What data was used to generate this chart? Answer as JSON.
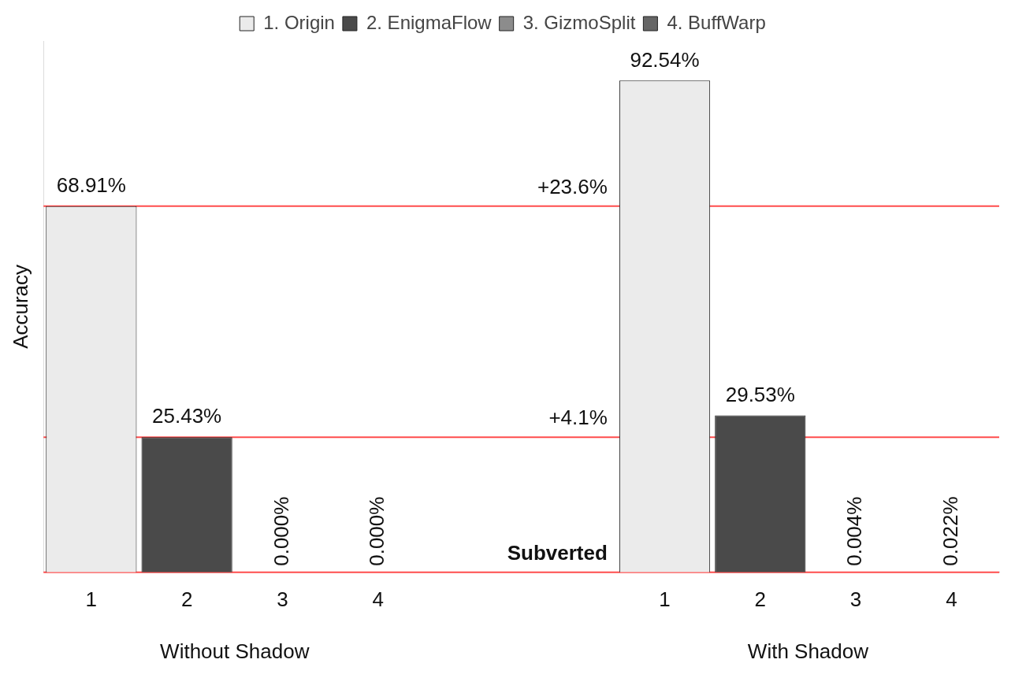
{
  "chart_data": {
    "type": "bar",
    "ylabel": "Accuracy",
    "categories": [
      "1",
      "2",
      "3",
      "4",
      null,
      null,
      "1",
      "2",
      "3",
      "4"
    ],
    "ylim": [
      0,
      100
    ],
    "tick_labels": "x",
    "grid": false,
    "legend": "top",
    "series": [
      {
        "name": "1. Origin",
        "color": "#ebebeb",
        "values": [
          68.91,
          null,
          null,
          null,
          null,
          null,
          92.54,
          null,
          null,
          null
        ],
        "value_labels": [
          "68.91%",
          null,
          null,
          null,
          null,
          null,
          "92.54%",
          null,
          null,
          null
        ]
      },
      {
        "name": "2. EnigmaFlow",
        "color": "#4a4a4a",
        "values": [
          null,
          25.43,
          null,
          null,
          null,
          null,
          null,
          29.53,
          null,
          null
        ],
        "value_labels": [
          null,
          "25.43%",
          null,
          null,
          null,
          null,
          null,
          "29.53%",
          null,
          null
        ]
      },
      {
        "name": "3. GizmoSplit",
        "color": "#8c8c8c",
        "values": [
          null,
          null,
          0,
          null,
          null,
          null,
          null,
          null,
          0.004,
          null
        ],
        "value_labels": [
          null,
          null,
          "0.000%",
          null,
          null,
          null,
          null,
          null,
          "0.004%",
          null
        ]
      },
      {
        "name": "4. BuffWarp",
        "color": "#666666",
        "values": [
          null,
          null,
          null,
          0,
          null,
          null,
          null,
          null,
          null,
          0.022
        ],
        "value_labels": [
          null,
          null,
          null,
          "0.000%",
          null,
          null,
          null,
          null,
          null,
          "0.022%"
        ]
      }
    ],
    "ref_lines": [
      {
        "axis": "y",
        "value": 68.91,
        "color": "#ff4d4d"
      },
      {
        "axis": "y",
        "value": 25.43,
        "color": "#ff4d4d"
      },
      {
        "axis": "y",
        "value": 0,
        "color": "#ff4d4d"
      }
    ],
    "annotations": [
      "Without Shadow",
      "With Shadow",
      {
        "text": "+23.6%",
        "y": 68.91
      },
      {
        "text": "+4.1%",
        "y": 25.43
      },
      {
        "text": "Subverted",
        "y": 0
      }
    ]
  }
}
